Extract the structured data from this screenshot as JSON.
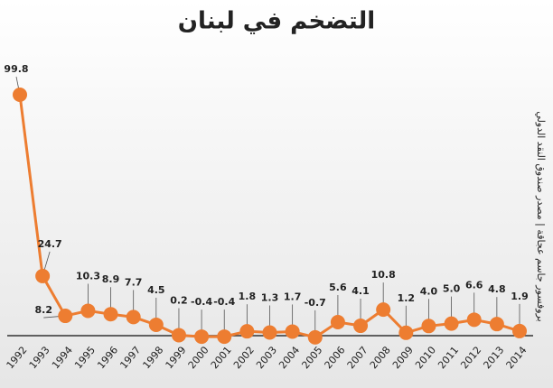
{
  "chart_data": {
    "type": "line",
    "title": "التضخم في لبنان",
    "source_note": "بروفسور جاسم عجاقة | مصدر صندوق النقد الدولي",
    "categories": [
      "1992",
      "1993",
      "1994",
      "1995",
      "1996",
      "1997",
      "1998",
      "1999",
      "2000",
      "2001",
      "2002",
      "2003",
      "2004",
      "2005",
      "2006",
      "2007",
      "2008",
      "2009",
      "2010",
      "2011",
      "2012",
      "2013",
      "2014"
    ],
    "series": [
      {
        "name": "التضخم",
        "color": "#ed7d31",
        "values": [
          99.8,
          24.7,
          8.2,
          10.3,
          8.9,
          7.7,
          4.5,
          0.2,
          -0.4,
          -0.4,
          1.8,
          1.3,
          1.7,
          -0.7,
          5.6,
          4.1,
          10.8,
          1.2,
          4.0,
          5.0,
          6.6,
          4.8,
          1.9
        ],
        "value_labels": [
          "99.8",
          "24.7",
          "8.2",
          "10.3",
          "8.9",
          "7.7",
          "4.5",
          "0.2",
          "-0.4",
          "-0.4",
          "1.8",
          "1.3",
          "1.7",
          "-0.7",
          "5.6",
          "4.1",
          "10.8",
          "1.2",
          "4.0",
          "5.0",
          "6.6",
          "4.8",
          "1.9"
        ]
      }
    ]
  }
}
